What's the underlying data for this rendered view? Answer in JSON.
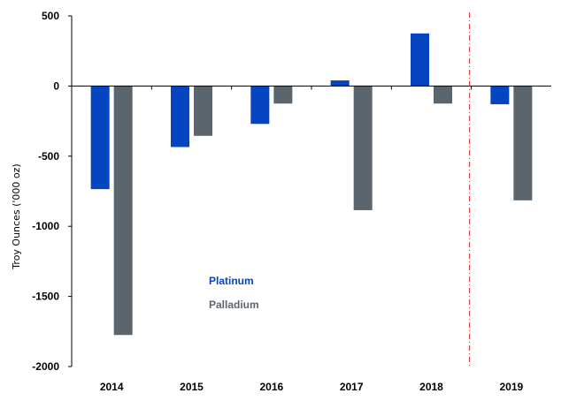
{
  "chart_data": {
    "type": "bar",
    "categories": [
      "2014",
      "2015",
      "2016",
      "2017",
      "2018",
      "2019"
    ],
    "series": [
      {
        "name": "Platinum",
        "color": "#0645c2",
        "values": [
          -735,
          -435,
          -270,
          40,
          375,
          -130
        ]
      },
      {
        "name": "Palladium",
        "color": "#5a656e",
        "values": [
          -1775,
          -355,
          -125,
          -885,
          -125,
          -815
        ]
      }
    ],
    "ylabel": "Troy Ounces ('000 oz)",
    "ylim": [
      -2000,
      500
    ],
    "yticks": [
      500,
      0,
      -500,
      -1000,
      -1500,
      -2000
    ],
    "grid": false,
    "legend": {
      "placement": "center-left",
      "items": [
        "Platinum",
        "Palladium"
      ]
    },
    "forecast_divider_after": "2018",
    "divider_color": "#e02020"
  }
}
